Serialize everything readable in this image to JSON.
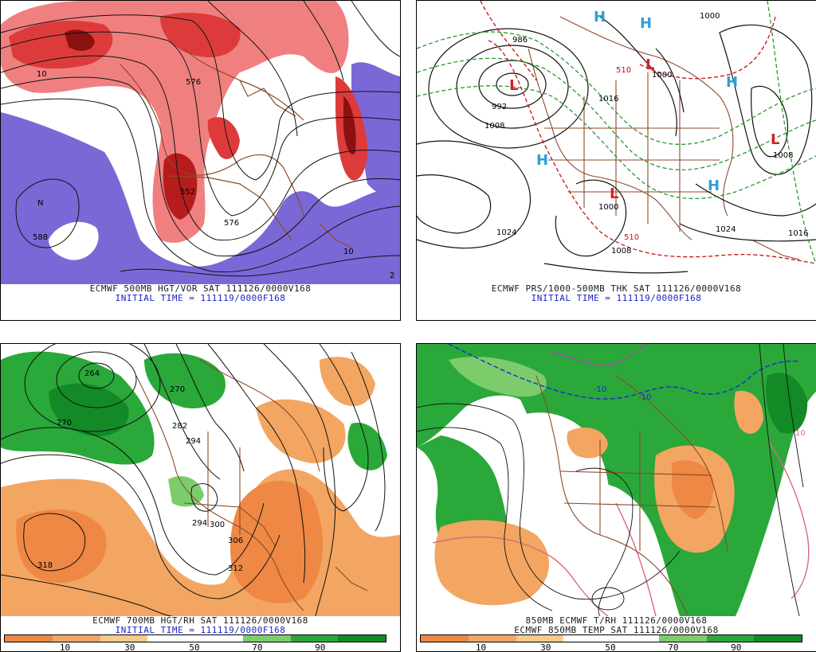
{
  "panels": {
    "tl": {
      "caption": "ECMWF 500MB HGT/VOR SAT 111126/0000V168",
      "initial": "INITIAL TIME = 111119/0000F168",
      "labels": [
        "N",
        "588",
        "10",
        "552",
        "576",
        "576",
        "10",
        "2"
      ]
    },
    "tr": {
      "caption": "ECMWF PRS/1000-500MB THK SAT 111126/0000V168",
      "initial": "INITIAL TIME = 111119/0000F168",
      "labels": [
        "986",
        "992",
        "1008",
        "1016",
        "1000",
        "1000",
        "1024",
        "1024",
        "1016",
        "1008",
        "1008",
        "510",
        "510",
        "1000"
      ],
      "highs": [
        "H",
        "H",
        "H",
        "H",
        "H"
      ],
      "lows": [
        "L",
        "L",
        "L",
        "L"
      ]
    },
    "bl": {
      "caption": "ECMWF 700MB HGT/RH SAT 111126/0000V168",
      "initial": "INITIAL TIME = 111119/0000F168",
      "labels": [
        "264",
        "270",
        "270",
        "282",
        "294",
        "294",
        "300",
        "306",
        "312",
        "318"
      ]
    },
    "br": {
      "caption": "850MB ECMWF T/RH 111126/0000V168",
      "initial": "ECMWF 850MB TEMP SAT 111126/0000V168",
      "labels": [
        "-10",
        "-10",
        "10"
      ]
    }
  },
  "colorbar": {
    "ticks": [
      "10",
      "30",
      "50",
      "70",
      "90"
    ],
    "colors": [
      "#ee8844",
      "#f2a661",
      "#f9c98e",
      "#ffffff",
      "#ffffff",
      "#7ccc6c",
      "#2aa83a",
      "#138a25"
    ]
  }
}
